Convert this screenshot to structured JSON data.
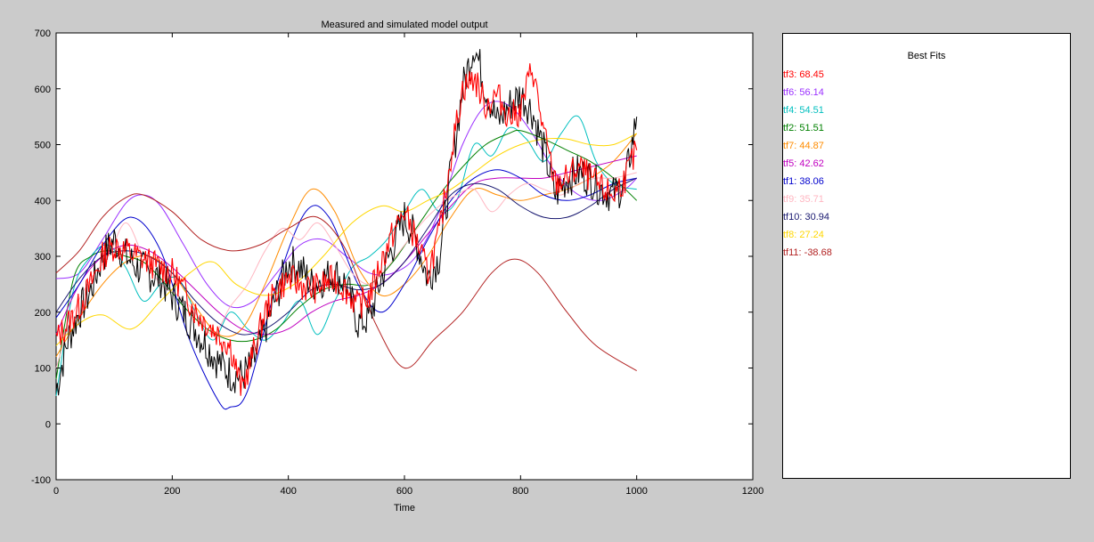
{
  "chart_data": {
    "type": "line",
    "title": "Measured and simulated model output",
    "xlabel": "Time",
    "ylabel": "",
    "xlim": [
      0,
      1200
    ],
    "ylim": [
      -100,
      700
    ],
    "xticks": [
      0,
      200,
      400,
      600,
      800,
      1000,
      1200
    ],
    "yticks": [
      -100,
      0,
      100,
      200,
      300,
      400,
      500,
      600,
      700
    ],
    "grid": false,
    "measured": {
      "color": "#000000",
      "x": [
        0,
        20,
        40,
        60,
        80,
        100,
        120,
        140,
        160,
        180,
        200,
        220,
        240,
        260,
        280,
        300,
        320,
        340,
        360,
        380,
        400,
        420,
        440,
        460,
        480,
        500,
        520,
        540,
        560,
        580,
        600,
        620,
        640,
        660,
        680,
        700,
        720,
        740,
        760,
        780,
        800,
        820,
        840,
        860,
        880,
        900,
        920,
        940,
        960,
        980,
        1000
      ],
      "y": [
        60,
        150,
        200,
        240,
        300,
        330,
        300,
        280,
        270,
        260,
        230,
        200,
        170,
        140,
        110,
        90,
        85,
        110,
        170,
        230,
        290,
        280,
        250,
        260,
        270,
        250,
        180,
        190,
        260,
        320,
        370,
        330,
        260,
        300,
        450,
        600,
        680,
        600,
        540,
        570,
        590,
        560,
        490,
        410,
        440,
        450,
        440,
        420,
        410,
        430,
        550
      ]
    },
    "best_fits_title": "Best Fits",
    "series": [
      {
        "name": "tf3",
        "fit": "68.45",
        "color": "#ff0000",
        "lw": 1.2,
        "x": [
          0,
          20,
          40,
          60,
          80,
          100,
          120,
          140,
          160,
          180,
          200,
          220,
          240,
          260,
          280,
          300,
          320,
          340,
          360,
          380,
          400,
          420,
          440,
          460,
          480,
          500,
          520,
          540,
          560,
          580,
          600,
          620,
          640,
          660,
          680,
          700,
          720,
          740,
          760,
          780,
          800,
          820,
          840,
          860,
          880,
          900,
          920,
          940,
          960,
          980,
          1000
        ],
        "y": [
          150,
          180,
          210,
          250,
          300,
          320,
          310,
          300,
          290,
          280,
          270,
          240,
          200,
          180,
          160,
          140,
          60,
          130,
          200,
          240,
          260,
          250,
          240,
          250,
          260,
          240,
          210,
          230,
          290,
          340,
          380,
          330,
          270,
          340,
          480,
          600,
          620,
          570,
          590,
          550,
          560,
          640,
          520,
          430,
          440,
          460,
          440,
          420,
          410,
          440,
          490
        ]
      },
      {
        "name": "tf6",
        "fit": "56.14",
        "color": "#9b30ff",
        "x": [
          0,
          40,
          80,
          120,
          150,
          180,
          220,
          260,
          300,
          340,
          380,
          420,
          460,
          500,
          540,
          580,
          620,
          660,
          700,
          740,
          780,
          820,
          860,
          900,
          940,
          980,
          1000
        ],
        "y": [
          260,
          270,
          330,
          395,
          410,
          390,
          320,
          250,
          210,
          220,
          270,
          320,
          330,
          300,
          270,
          270,
          300,
          380,
          500,
          570,
          570,
          520,
          450,
          410,
          400,
          420,
          440
        ]
      },
      {
        "name": "tf4",
        "fit": "54.51",
        "color": "#00bfbf",
        "x": [
          0,
          30,
          60,
          90,
          120,
          150,
          180,
          210,
          240,
          270,
          300,
          330,
          360,
          390,
          420,
          450,
          480,
          510,
          540,
          570,
          600,
          630,
          660,
          690,
          720,
          750,
          780,
          810,
          840,
          870,
          900,
          930,
          960,
          1000
        ],
        "y": [
          50,
          240,
          300,
          320,
          280,
          220,
          250,
          260,
          200,
          150,
          200,
          170,
          150,
          180,
          220,
          160,
          220,
          280,
          300,
          330,
          380,
          420,
          380,
          400,
          500,
          480,
          530,
          510,
          470,
          520,
          550,
          470,
          430,
          420
        ]
      },
      {
        "name": "tf2",
        "fit": "51.51",
        "color": "#008000",
        "x": [
          0,
          30,
          60,
          90,
          120,
          150,
          180,
          220,
          260,
          300,
          340,
          380,
          420,
          460,
          500,
          540,
          580,
          620,
          660,
          700,
          740,
          780,
          800,
          840,
          880,
          920,
          960,
          1000
        ],
        "y": [
          80,
          260,
          300,
          310,
          300,
          290,
          260,
          210,
          170,
          150,
          150,
          170,
          210,
          240,
          250,
          250,
          290,
          350,
          410,
          460,
          500,
          520,
          525,
          510,
          490,
          470,
          440,
          400
        ]
      },
      {
        "name": "tf7",
        "fit": "44.87",
        "color": "#ff8c00",
        "x": [
          0,
          40,
          80,
          120,
          160,
          200,
          240,
          280,
          320,
          360,
          400,
          440,
          480,
          520,
          560,
          600,
          640,
          680,
          720,
          760,
          800,
          840,
          880,
          920,
          960,
          1000
        ],
        "y": [
          120,
          190,
          250,
          290,
          300,
          270,
          210,
          160,
          170,
          250,
          350,
          420,
          380,
          280,
          230,
          250,
          300,
          370,
          420,
          410,
          400,
          410,
          420,
          440,
          470,
          520
        ]
      },
      {
        "name": "tf5",
        "fit": "42.62",
        "color": "#c000c0",
        "x": [
          0,
          40,
          80,
          120,
          160,
          200,
          240,
          280,
          320,
          360,
          400,
          440,
          480,
          520,
          560,
          600,
          640,
          680,
          720,
          760,
          800,
          840,
          880,
          920,
          960,
          1000
        ],
        "y": [
          160,
          250,
          300,
          320,
          310,
          280,
          240,
          200,
          170,
          160,
          170,
          200,
          220,
          230,
          250,
          290,
          340,
          390,
          430,
          440,
          440,
          440,
          450,
          460,
          470,
          480
        ]
      },
      {
        "name": "tf1",
        "fit": "38.06",
        "color": "#0000cd",
        "x": [
          0,
          40,
          80,
          130,
          180,
          230,
          280,
          300,
          330,
          380,
          430,
          470,
          520,
          560,
          600,
          640,
          680,
          720,
          760,
          800,
          840,
          880,
          920,
          960,
          1000
        ],
        "y": [
          190,
          250,
          320,
          370,
          310,
          150,
          40,
          30,
          60,
          250,
          380,
          370,
          250,
          200,
          250,
          330,
          400,
          440,
          455,
          440,
          410,
          400,
          410,
          430,
          440
        ]
      },
      {
        "name": "tf9",
        "fit": "35.71",
        "color": "#ffb6c1",
        "x": [
          0,
          30,
          60,
          90,
          120,
          150,
          180,
          210,
          240,
          270,
          300,
          330,
          360,
          390,
          420,
          450,
          480,
          510,
          540,
          570,
          600,
          630,
          660,
          690,
          720,
          750,
          780,
          810,
          840,
          870,
          900,
          930,
          960,
          1000
        ],
        "y": [
          100,
          200,
          260,
          300,
          360,
          300,
          250,
          230,
          200,
          160,
          210,
          250,
          310,
          350,
          330,
          360,
          320,
          270,
          250,
          280,
          320,
          360,
          390,
          410,
          420,
          380,
          410,
          430,
          420,
          410,
          430,
          440,
          440,
          450
        ]
      },
      {
        "name": "tf10",
        "fit": "30.94",
        "color": "#191970",
        "x": [
          0,
          40,
          80,
          120,
          160,
          200,
          240,
          280,
          320,
          360,
          400,
          440,
          480,
          520,
          560,
          600,
          640,
          680,
          720,
          760,
          800,
          840,
          880,
          920,
          960,
          1000
        ],
        "y": [
          200,
          260,
          300,
          310,
          300,
          270,
          220,
          180,
          160,
          170,
          200,
          240,
          250,
          240,
          250,
          290,
          350,
          410,
          430,
          420,
          390,
          370,
          370,
          390,
          420,
          440
        ]
      },
      {
        "name": "tf8",
        "fit": "27.24",
        "color": "#ffd700",
        "x": [
          0,
          40,
          80,
          130,
          180,
          230,
          270,
          310,
          360,
          410,
          460,
          510,
          560,
          600,
          640,
          680,
          720,
          760,
          800,
          840,
          880,
          920,
          960,
          1000
        ],
        "y": [
          140,
          180,
          195,
          170,
          220,
          270,
          290,
          250,
          230,
          250,
          300,
          360,
          390,
          380,
          400,
          420,
          450,
          480,
          500,
          510,
          510,
          500,
          500,
          520
        ]
      },
      {
        "name": "tf11",
        "fit": "-38.68",
        "color": "#b22222",
        "x": [
          0,
          40,
          80,
          120,
          150,
          200,
          250,
          300,
          350,
          400,
          450,
          500,
          550,
          600,
          650,
          700,
          750,
          790,
          830,
          880,
          930,
          1000
        ],
        "y": [
          270,
          310,
          370,
          405,
          410,
          380,
          330,
          310,
          320,
          350,
          370,
          310,
          180,
          100,
          150,
          200,
          270,
          295,
          270,
          200,
          140,
          95
        ]
      }
    ]
  }
}
